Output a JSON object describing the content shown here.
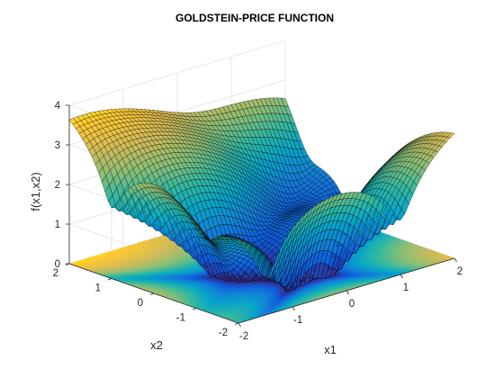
{
  "chart_data": {
    "type": "surface",
    "title": "GOLDSTEIN-PRICE FUNCTION",
    "xlabel": "x1",
    "ylabel": "x2",
    "zlabel": "f(x1,x2)",
    "xlim": [
      -2,
      2
    ],
    "ylim": [
      -2,
      2
    ],
    "zlim": [
      0,
      4
    ],
    "xticks": [
      "-2",
      "-1",
      "0",
      "1",
      "2"
    ],
    "yticks": [
      "-2",
      "-1",
      "0",
      "1",
      "2"
    ],
    "zticks": [
      "0",
      "1",
      "2",
      "3",
      "4"
    ],
    "function": "Goldstein-Price (log-scaled, clipped)",
    "grid_points": 53,
    "grid": true,
    "shading": "faceted",
    "colormap": "parula",
    "surface_function": "log-scaled Goldstein-Price, clipped at 0",
    "base_contour_plane": true,
    "colors": {
      "colormap_stops": [
        "#352a87",
        "#0f5cdd",
        "#1481d6",
        "#06a4ca",
        "#2eb7a4",
        "#87bf77",
        "#d1bb59",
        "#fec832",
        "#f9fb0e"
      ],
      "mesh_edge": "#000000",
      "grid": "#e2e2e2",
      "axis": "#262626"
    }
  }
}
